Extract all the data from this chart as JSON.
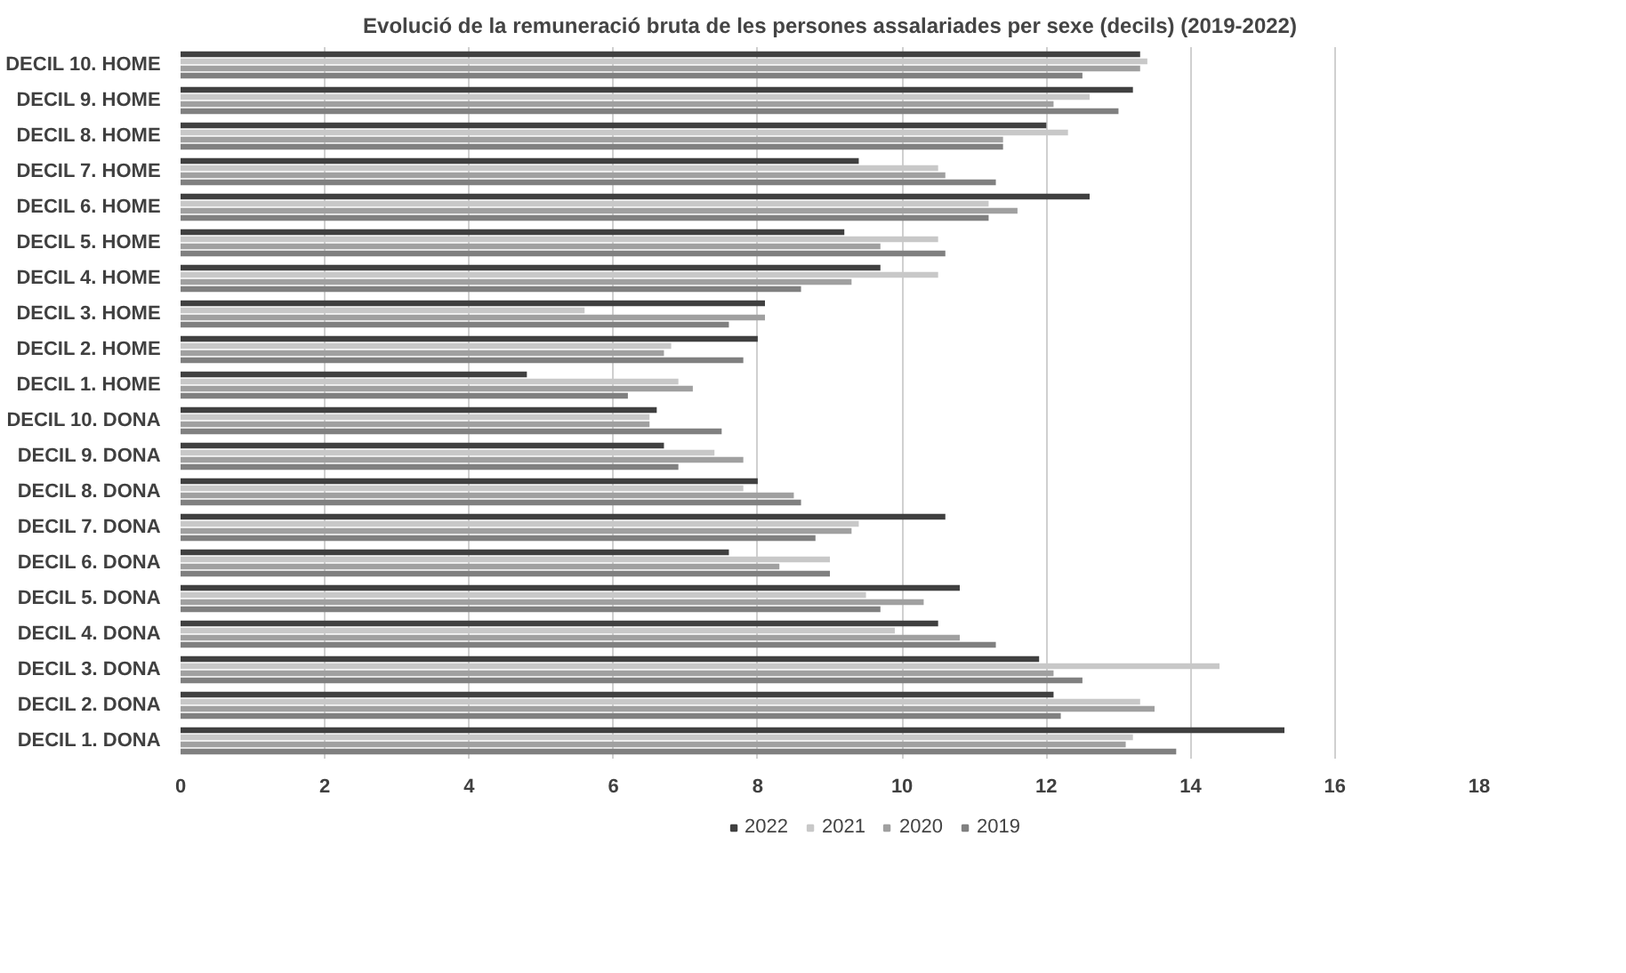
{
  "chart_data": {
    "type": "bar",
    "orientation": "horizontal",
    "title": "Evolució de la remuneració bruta de les persones assalariades per sexe (decils) (2019-2022)",
    "categories": [
      "DECIL 10. HOME",
      "DECIL 9. HOME",
      "DECIL 8. HOME",
      "DECIL 7. HOME",
      "DECIL 6. HOME",
      "DECIL 5. HOME",
      "DECIL 4. HOME",
      "DECIL 3. HOME",
      "DECIL 2. HOME",
      "DECIL 1. HOME",
      "DECIL 10. DONA",
      "DECIL 9. DONA",
      "DECIL 8. DONA",
      "DECIL 7. DONA",
      "DECIL 6. DONA",
      "DECIL 5. DONA",
      "DECIL 4. DONA",
      "DECIL 3. DONA",
      "DECIL 2. DONA",
      "DECIL 1. DONA"
    ],
    "series": [
      {
        "name": "2022",
        "color": "#404040",
        "values": [
          13.3,
          13.2,
          12.0,
          9.4,
          12.6,
          9.2,
          9.7,
          8.1,
          8.0,
          4.8,
          6.6,
          6.7,
          8.0,
          10.6,
          7.6,
          10.8,
          10.5,
          11.9,
          12.1,
          15.3
        ]
      },
      {
        "name": "2021",
        "color": "#c8c8c8",
        "values": [
          13.4,
          12.6,
          12.3,
          10.5,
          11.2,
          10.5,
          10.5,
          5.6,
          6.8,
          6.9,
          6.5,
          7.4,
          7.8,
          9.4,
          9.0,
          9.5,
          9.9,
          14.4,
          13.3,
          13.2
        ]
      },
      {
        "name": "2020",
        "color": "#a0a0a0",
        "values": [
          13.3,
          12.1,
          11.4,
          10.6,
          11.6,
          9.7,
          9.3,
          8.1,
          6.7,
          7.1,
          6.5,
          7.8,
          8.5,
          9.3,
          8.3,
          10.3,
          10.8,
          12.1,
          13.5,
          13.1
        ]
      },
      {
        "name": "2019",
        "color": "#808080",
        "values": [
          12.5,
          13.0,
          11.4,
          11.3,
          11.2,
          10.6,
          8.6,
          7.6,
          7.8,
          6.2,
          7.5,
          6.9,
          8.6,
          8.8,
          9.0,
          9.7,
          11.3,
          12.5,
          12.2,
          13.8
        ]
      }
    ],
    "xlim": [
      0,
      18
    ],
    "xticks": [
      0,
      2,
      4,
      6,
      8,
      10,
      12,
      14,
      16,
      18
    ],
    "grid": "x",
    "legend": "bottom"
  }
}
